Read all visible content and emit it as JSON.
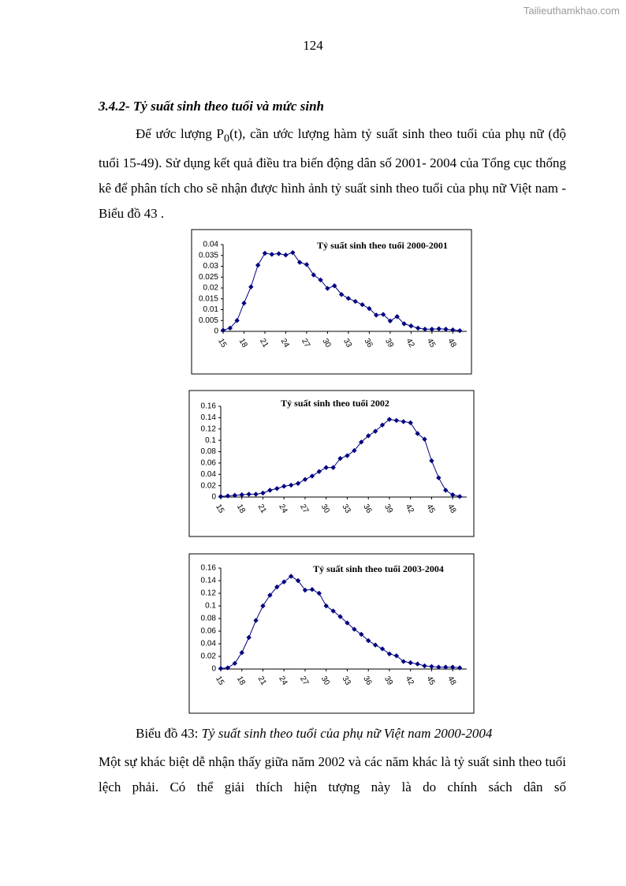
{
  "watermark": "Tailieuthamkhao.com",
  "page_number": "124",
  "heading": "3.4.2- Tỷ suất sinh theo tuổi và mức sinh",
  "paragraph_1": {
    "before": "Để ước lượng P",
    "subscript": "0",
    "after": "(t), cần ước lượng hàm tỷ suất sinh theo tuổi của phụ nữ (độ tuổi 15-49). Sử dụng kết quả điều tra biến động dân số 2001- 2004 của Tổng cục thống kê để phân tích cho sẽ nhận được hình ảnh tỷ suất sinh theo tuổi của phụ nữ Việt nam -Biểu đồ 43 ."
  },
  "chart_data": [
    {
      "type": "line",
      "title": "Tỷ suất sinh theo tuổi 2000-2001",
      "x": [
        15,
        16,
        17,
        18,
        19,
        20,
        21,
        22,
        23,
        24,
        25,
        26,
        27,
        28,
        29,
        30,
        31,
        32,
        33,
        34,
        35,
        36,
        37,
        38,
        39,
        40,
        41,
        42,
        43,
        44,
        45,
        46,
        47,
        48,
        49
      ],
      "series": [
        {
          "color": "#000080",
          "values": [
            0.0005,
            0.0015,
            0.005,
            0.013,
            0.0205,
            0.0305,
            0.036,
            0.0355,
            0.0358,
            0.0352,
            0.0363,
            0.0318,
            0.0308,
            0.026,
            0.0237,
            0.0198,
            0.021,
            0.017,
            0.0152,
            0.0138,
            0.0123,
            0.0105,
            0.0075,
            0.0078,
            0.0048,
            0.0068,
            0.0035,
            0.0025,
            0.0015,
            0.001,
            0.001,
            0.0012,
            0.001,
            0.0007,
            0.0003
          ]
        }
      ],
      "xlim": [
        15,
        50
      ],
      "xticks": [
        15,
        18,
        21,
        24,
        27,
        30,
        33,
        36,
        39,
        42,
        45,
        48
      ],
      "ylim": [
        0,
        0.04
      ],
      "yticks": [
        0,
        0.005,
        0.01,
        0.015,
        0.02,
        0.025,
        0.03,
        0.035,
        0.04
      ],
      "grid": false
    },
    {
      "type": "line",
      "title": "Tỷ suất sinh theo tuổi 2002",
      "x": [
        15,
        16,
        17,
        18,
        19,
        20,
        21,
        22,
        23,
        24,
        25,
        26,
        27,
        28,
        29,
        30,
        31,
        32,
        33,
        34,
        35,
        36,
        37,
        38,
        39,
        40,
        41,
        42,
        43,
        44,
        45,
        46,
        47,
        48,
        49
      ],
      "series": [
        {
          "color": "#000080",
          "values": [
            0.001,
            0.002,
            0.003,
            0.004,
            0.005,
            0.005,
            0.007,
            0.012,
            0.015,
            0.019,
            0.021,
            0.024,
            0.031,
            0.037,
            0.045,
            0.052,
            0.052,
            0.068,
            0.073,
            0.082,
            0.097,
            0.108,
            0.116,
            0.127,
            0.137,
            0.135,
            0.133,
            0.131,
            0.112,
            0.102,
            0.064,
            0.034,
            0.012,
            0.004,
            0.001
          ]
        }
      ],
      "xlim": [
        15,
        50
      ],
      "xticks": [
        15,
        18,
        21,
        24,
        27,
        30,
        33,
        36,
        39,
        42,
        45,
        48
      ],
      "ylim": [
        0,
        0.16
      ],
      "yticks": [
        0,
        0.02,
        0.04,
        0.06,
        0.08,
        0.1,
        0.12,
        0.14,
        0.16
      ],
      "grid": false
    },
    {
      "type": "line",
      "title": "Tỷ suất sinh theo tuổi 2003-2004",
      "x": [
        15,
        16,
        17,
        18,
        19,
        20,
        21,
        22,
        23,
        24,
        25,
        26,
        27,
        28,
        29,
        30,
        31,
        32,
        33,
        34,
        35,
        36,
        37,
        38,
        39,
        40,
        41,
        42,
        43,
        44,
        45,
        46,
        47,
        48,
        49
      ],
      "series": [
        {
          "color": "#000080",
          "values": [
            0.001,
            0.002,
            0.009,
            0.026,
            0.05,
            0.077,
            0.1,
            0.117,
            0.13,
            0.138,
            0.147,
            0.14,
            0.125,
            0.126,
            0.12,
            0.1,
            0.092,
            0.083,
            0.073,
            0.063,
            0.055,
            0.045,
            0.038,
            0.032,
            0.024,
            0.021,
            0.012,
            0.01,
            0.008,
            0.005,
            0.004,
            0.003,
            0.003,
            0.003,
            0.002
          ]
        }
      ],
      "xlim": [
        15,
        50
      ],
      "xticks": [
        15,
        18,
        21,
        24,
        27,
        30,
        33,
        36,
        39,
        42,
        45,
        48
      ],
      "ylim": [
        0,
        0.16
      ],
      "yticks": [
        0,
        0.02,
        0.04,
        0.06,
        0.08,
        0.1,
        0.12,
        0.14,
        0.16
      ],
      "grid": false
    }
  ],
  "caption": {
    "label": "Biểu đồ 43: ",
    "text": "Tỷ suất sinh theo tuổi của phụ nữ Việt nam 2000-2004"
  },
  "paragraph_2": "Một sự khác biệt dễ nhận thấy giữa năm 2002 và các năm khác là tỷ suất sinh theo tuổi lệch phải. Có thể giải thích hiện tượng này là do chính sách dân số"
}
